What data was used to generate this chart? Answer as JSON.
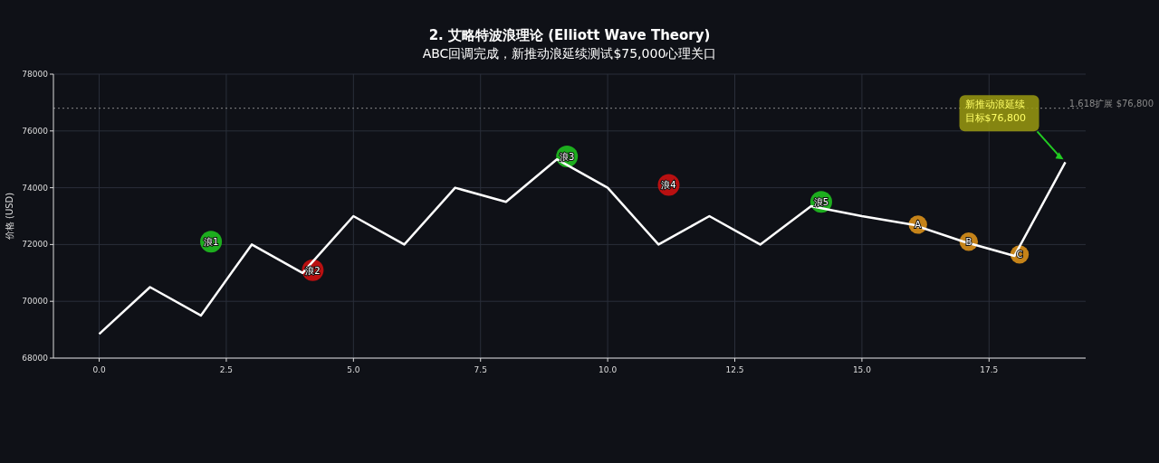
{
  "chart_data": {
    "type": "line",
    "title": "2. 艾略特波浪理论 (Elliott Wave Theory)",
    "subtitle": "ABC回调完成，新推动浪延续测试$75,000心理关口",
    "ylabel": "价格 (USD)",
    "xlim": [
      -0.9,
      19.4
    ],
    "xticks": [
      {
        "value": 0,
        "label": "0.0"
      },
      {
        "value": 2.5,
        "label": "2.5"
      },
      {
        "value": 5,
        "label": "5.0"
      },
      {
        "value": 7.5,
        "label": "7.5"
      },
      {
        "value": 10,
        "label": "10.0"
      },
      {
        "value": 12.5,
        "label": "12.5"
      },
      {
        "value": 15,
        "label": "15.0"
      },
      {
        "value": 17.5,
        "label": "17.5"
      }
    ],
    "ylim": [
      68000,
      78000
    ],
    "yticks": [
      68000,
      70000,
      72000,
      74000,
      76000,
      78000
    ],
    "grid": true,
    "series": [
      {
        "color": "#ffffff",
        "x": [
          0,
          1,
          2,
          3,
          4,
          5,
          6,
          7,
          8,
          9,
          10,
          11,
          12,
          13,
          14,
          15,
          16,
          17,
          18,
          19
        ],
        "values": [
          68850,
          70500,
          69500,
          72000,
          71000,
          73000,
          72000,
          74000,
          73500,
          75000,
          74000,
          72000,
          73000,
          72000,
          73350,
          73000,
          72700,
          72100,
          71600,
          74900
        ]
      },
      {
        "type": "scatter",
        "x": [
          2.2,
          4.2,
          9.2,
          11.2,
          14.2,
          16.1,
          17.1,
          18.1
        ],
        "values": [
          72100,
          71100,
          75100,
          74100,
          73500,
          72700,
          72100,
          71650
        ],
        "colors": [
          "#1fbf1f",
          "#cc1111",
          "#1fbf1f",
          "#cc1111",
          "#1fbf1f",
          "#d9901a",
          "#d9901a",
          "#d9901a"
        ],
        "sizes": [
          1,
          1,
          1,
          1,
          1,
          0.72,
          0.72,
          0.72
        ]
      }
    ],
    "ref_lines": [
      {
        "axis": "y",
        "value": 76800,
        "label": "1.618扩展 $76,800",
        "color": "#888888",
        "line_style": "dotted"
      }
    ],
    "annotations": [
      {
        "text": "浪1",
        "x": 2.2,
        "y": 72100
      },
      {
        "text": "浪2",
        "x": 4.2,
        "y": 71100
      },
      {
        "text": "浪3",
        "x": 9.2,
        "y": 75100
      },
      {
        "text": "浪4",
        "x": 11.2,
        "y": 74100
      },
      {
        "text": "浪5",
        "x": 14.2,
        "y": 73500
      },
      {
        "text": "A",
        "x": 16.1,
        "y": 72700
      },
      {
        "text": "B",
        "x": 17.1,
        "y": 72100
      },
      {
        "text": "C",
        "x": 18.1,
        "y": 71650
      },
      "新推动浪延续",
      "目标$76,800"
    ]
  }
}
